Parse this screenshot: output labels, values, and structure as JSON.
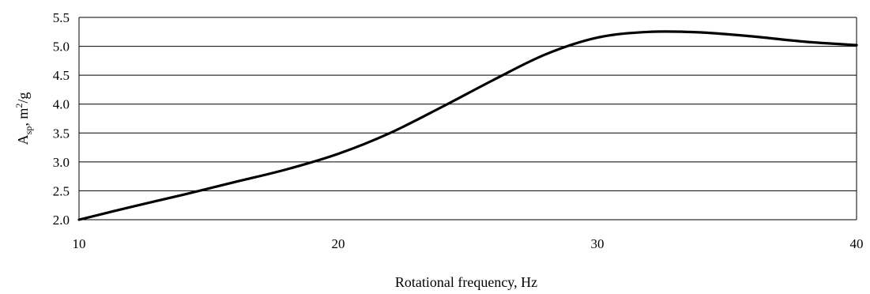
{
  "chart_data": {
    "type": "line",
    "title": "",
    "xlabel": "Rotational frequency, Hz",
    "ylabel": {
      "base": "A",
      "sub": "sp",
      "mid": ", m",
      "sup": "2",
      "tail": "/g"
    },
    "xlim": [
      10,
      40
    ],
    "ylim": [
      2.0,
      5.5
    ],
    "xticks": [
      "10",
      "20",
      "30",
      "40"
    ],
    "yticks": [
      "2.0",
      "2.5",
      "3.0",
      "3.5",
      "4.0",
      "4.5",
      "5.0",
      "5.5"
    ],
    "grid": "horizontal",
    "legend": "none",
    "line_color": "#000000",
    "series": [
      {
        "x": [
          10,
          12,
          14,
          16,
          18,
          20,
          22,
          24,
          26,
          28,
          30,
          32,
          34,
          36,
          38,
          40
        ],
        "values": [
          2.0,
          2.22,
          2.43,
          2.65,
          2.87,
          3.14,
          3.5,
          3.95,
          4.42,
          4.86,
          5.15,
          5.25,
          5.24,
          5.17,
          5.08,
          5.02
        ]
      }
    ]
  }
}
